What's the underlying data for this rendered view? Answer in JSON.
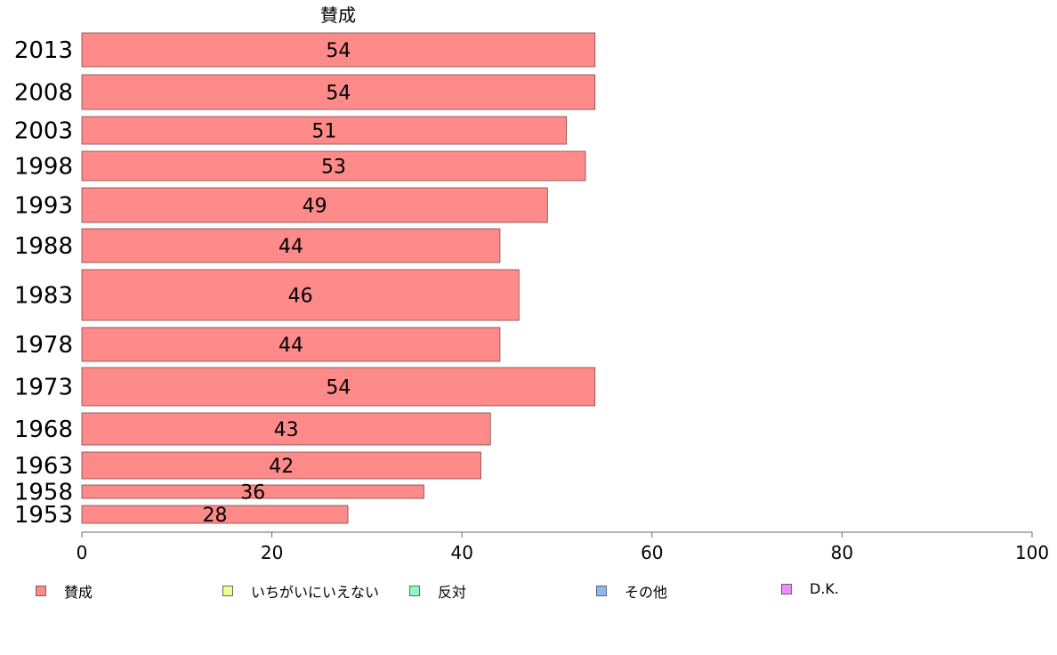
{
  "chart_data": {
    "type": "bar",
    "orientation": "horizontal",
    "title": "賛成",
    "categories": [
      "2013",
      "2008",
      "2003",
      "1998",
      "1993",
      "1988",
      "1983",
      "1978",
      "1973",
      "1968",
      "1963",
      "1958",
      "1953"
    ],
    "series": [
      {
        "name": "賛成",
        "values": [
          54,
          54,
          51,
          53,
          49,
          44,
          46,
          44,
          54,
          43,
          42,
          36,
          28
        ],
        "color": "#ff8a8a"
      }
    ],
    "xlim": [
      0,
      100
    ],
    "xticks": [
      0,
      20,
      40,
      60,
      80,
      100
    ],
    "xlabel": "",
    "ylabel": "",
    "grid": false,
    "legend_position": "bottom"
  },
  "legend": [
    {
      "label": "賛成",
      "color": "#ff8a8a"
    },
    {
      "label": "いちがいにいえない",
      "color": "#f0ff8a"
    },
    {
      "label": "反対",
      "color": "#8affc0"
    },
    {
      "label": "その他",
      "color": "#8ab8ff"
    },
    {
      "label": "D.K.",
      "color": "#f08aff"
    }
  ]
}
